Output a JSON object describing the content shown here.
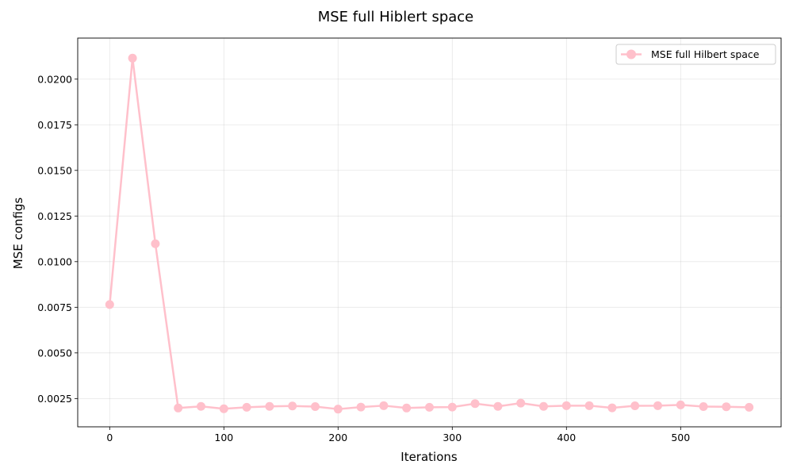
{
  "chart_data": {
    "type": "line",
    "title": "MSE full Hiblert space",
    "xlabel": "Iterations",
    "ylabel": "MSE configs",
    "xlim": [
      -28,
      588
    ],
    "ylim": [
      0.00095,
      0.02225
    ],
    "xticks": [
      0,
      100,
      200,
      300,
      400,
      500
    ],
    "xtick_labels": [
      "0",
      "100",
      "200",
      "300",
      "400",
      "500"
    ],
    "yticks": [
      0.0025,
      0.005,
      0.0075,
      0.01,
      0.0125,
      0.015,
      0.0175,
      0.02
    ],
    "ytick_labels": [
      "0.0025",
      "0.0050",
      "0.0075",
      "0.0100",
      "0.0125",
      "0.0150",
      "0.0175",
      "0.0200"
    ],
    "grid": true,
    "legend_position": "top-right",
    "series": [
      {
        "name": "MSE full Hilbert space",
        "color": "#ffc0cb",
        "marker": "circle",
        "x": [
          0,
          20,
          40,
          60,
          80,
          100,
          120,
          140,
          160,
          180,
          200,
          220,
          240,
          260,
          280,
          300,
          320,
          340,
          360,
          380,
          400,
          420,
          440,
          460,
          480,
          500,
          520,
          540,
          560
        ],
        "y": [
          0.00765,
          0.02115,
          0.01098,
          0.00198,
          0.00207,
          0.00194,
          0.00202,
          0.00207,
          0.00209,
          0.00206,
          0.00192,
          0.00203,
          0.00211,
          0.00198,
          0.00202,
          0.00203,
          0.00222,
          0.00207,
          0.00225,
          0.00207,
          0.00211,
          0.00211,
          0.00199,
          0.0021,
          0.00211,
          0.00215,
          0.00206,
          0.00205,
          0.00202
        ]
      }
    ]
  }
}
